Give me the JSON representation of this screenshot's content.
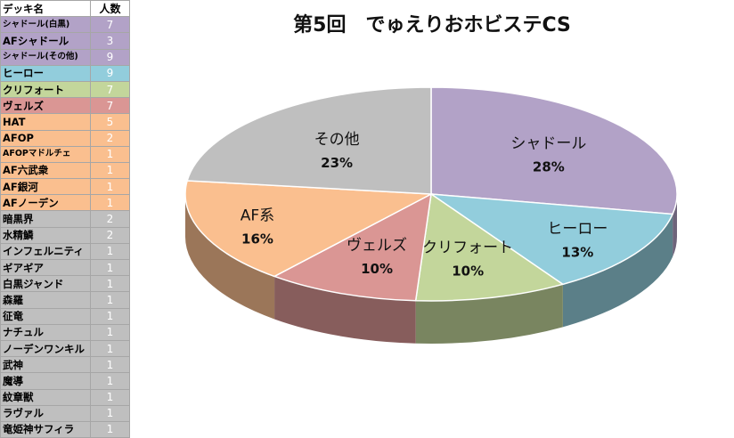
{
  "table": {
    "header": {
      "name": "デッキ名",
      "count": "人数"
    },
    "rows": [
      {
        "name": "シャドール(白黒)",
        "count": "7",
        "color": "#b2a2c7",
        "small": true
      },
      {
        "name": "AFシャドール",
        "count": "3",
        "color": "#b2a2c7"
      },
      {
        "name": "シャドール(その他)",
        "count": "9",
        "color": "#b2a2c7",
        "small": true
      },
      {
        "name": "ヒーロー",
        "count": "9",
        "color": "#92cddc"
      },
      {
        "name": "クリフォート",
        "count": "7",
        "color": "#c3d69b"
      },
      {
        "name": "ヴェルズ",
        "count": "7",
        "color": "#da9694"
      },
      {
        "name": "HAT",
        "count": "5",
        "color": "#fabf8f"
      },
      {
        "name": "AFOP",
        "count": "2",
        "color": "#fabf8f"
      },
      {
        "name": "AFOPマドルチェ",
        "count": "1",
        "color": "#fabf8f",
        "small": true
      },
      {
        "name": "AF六武衆",
        "count": "1",
        "color": "#fabf8f"
      },
      {
        "name": "AF銀河",
        "count": "1",
        "color": "#fabf8f"
      },
      {
        "name": "AFノーデン",
        "count": "1",
        "color": "#fabf8f"
      },
      {
        "name": "暗黒界",
        "count": "2",
        "color": "#bfbfbf"
      },
      {
        "name": "水精鱗",
        "count": "2",
        "color": "#bfbfbf"
      },
      {
        "name": "インフェルニティ",
        "count": "1",
        "color": "#bfbfbf"
      },
      {
        "name": "ギアギア",
        "count": "1",
        "color": "#bfbfbf"
      },
      {
        "name": "白黒ジャンド",
        "count": "1",
        "color": "#bfbfbf"
      },
      {
        "name": "森羅",
        "count": "1",
        "color": "#bfbfbf"
      },
      {
        "name": "征竜",
        "count": "1",
        "color": "#bfbfbf"
      },
      {
        "name": "ナチュル",
        "count": "1",
        "color": "#bfbfbf"
      },
      {
        "name": "ノーデンワンキル",
        "count": "1",
        "color": "#bfbfbf"
      },
      {
        "name": "武神",
        "count": "1",
        "color": "#bfbfbf"
      },
      {
        "name": "魔導",
        "count": "1",
        "color": "#bfbfbf"
      },
      {
        "name": "紋章獣",
        "count": "1",
        "color": "#bfbfbf"
      },
      {
        "name": "ラヴァル",
        "count": "1",
        "color": "#bfbfbf"
      },
      {
        "name": "竜姫神サフィラ",
        "count": "1",
        "color": "#bfbfbf"
      }
    ]
  },
  "chart_data": {
    "type": "pie",
    "title": "第5回　でゅえりおホビステCS",
    "categories": [
      "シャドール",
      "ヒーロー",
      "クリフォート",
      "ヴェルズ",
      "AF系",
      "その他"
    ],
    "values": [
      28,
      13,
      10,
      10,
      16,
      23
    ],
    "labels": [
      "28%",
      "13%",
      "10%",
      "10%",
      "16%",
      "23%"
    ],
    "colors": [
      "#b2a2c7",
      "#92cddc",
      "#c3d69b",
      "#da9694",
      "#fabf8f",
      "#bfbfbf"
    ],
    "start_angle_deg": 0,
    "direction": "clockwise",
    "style": "3d"
  }
}
